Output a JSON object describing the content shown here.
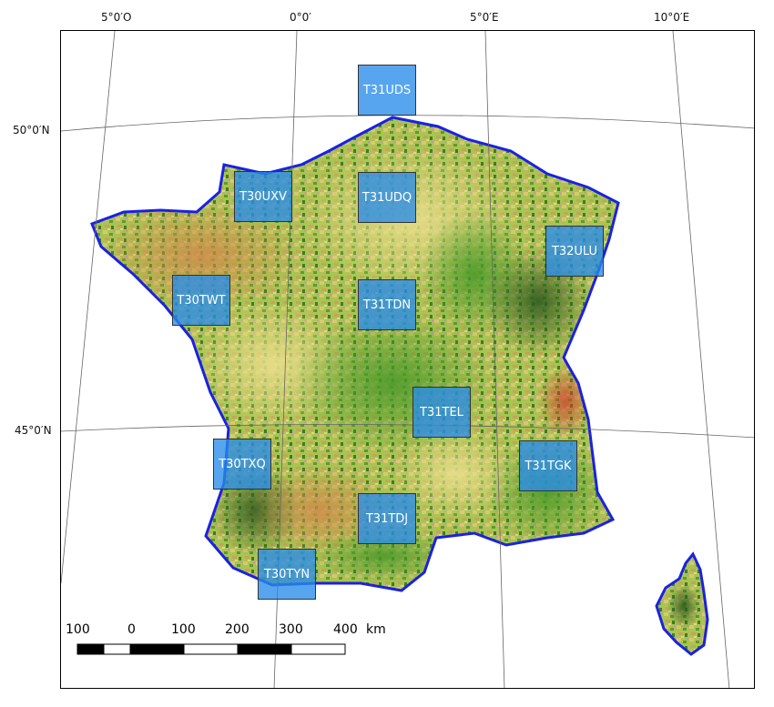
{
  "graticule": {
    "lon_labels": [
      "5°0′O",
      "0°0′",
      "5°0′E",
      "10°0′E"
    ],
    "lat_labels": [
      "50°0′N",
      "45°0′N"
    ]
  },
  "tiles": [
    "T31UDS",
    "T30UXV",
    "T31UDQ",
    "T32ULU",
    "T30TWT",
    "T31TDN",
    "T31TEL",
    "T30TXQ",
    "T31TGK",
    "T31TDJ",
    "T30TYN"
  ],
  "scale": {
    "labels": [
      "100",
      "0",
      "100",
      "200",
      "300",
      "400"
    ],
    "unit": "km"
  },
  "colors": {
    "tile_fill": "#288ceb",
    "coast": "#1a22e0",
    "land_base": "#9fbb4a"
  }
}
